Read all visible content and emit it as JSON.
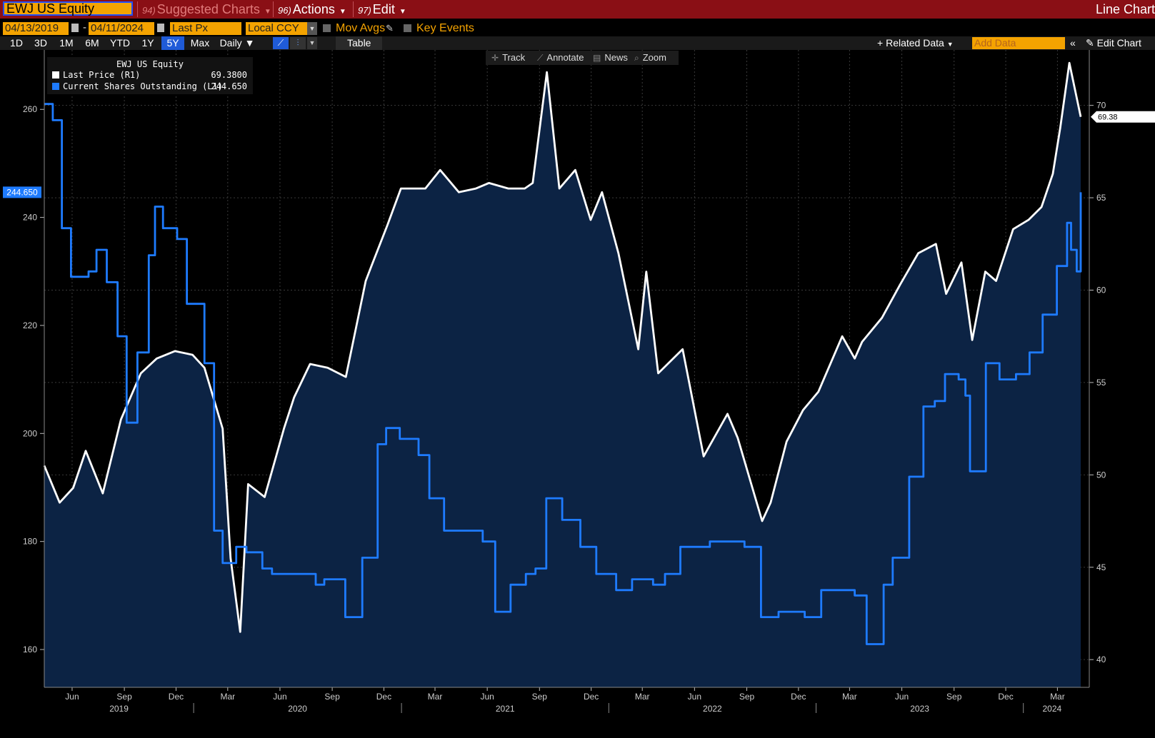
{
  "header": {
    "ticker": "EWJ US Equity",
    "menu": [
      {
        "num": "94)",
        "label": "Suggested Charts",
        "dim": true
      },
      {
        "num": "96)",
        "label": "Actions",
        "dim": false
      },
      {
        "num": "97)",
        "label": "Edit",
        "dim": false
      }
    ],
    "chart_type": "Line Chart"
  },
  "controls": {
    "start_date": "04/13/2019",
    "end_date": "04/11/2024",
    "field": "Last Px",
    "currency": "Local CCY",
    "mov_avgs": "Mov Avgs",
    "key_events": "Key Events",
    "periods": [
      "1D",
      "3D",
      "1M",
      "6M",
      "YTD",
      "1Y",
      "5Y",
      "Max"
    ],
    "selected_period": "5Y",
    "frequency": "Daily",
    "table_label": "Table",
    "related_data": "Related Data",
    "add_data_placeholder": "Add Data",
    "edit_chart": "Edit Chart"
  },
  "tools": [
    "Track",
    "Annotate",
    "News",
    "Zoom"
  ],
  "legend": {
    "title": "EWJ US Equity",
    "items": [
      {
        "label": "Last Price  (R1)",
        "value": "69.3800",
        "color": "#ffffff"
      },
      {
        "label": "Current Shares Outstanding  (L1)",
        "value": "244.650",
        "color": "#1e7bff"
      }
    ]
  },
  "colors": {
    "price_line": "#ffffff",
    "shares_line": "#1e7bff",
    "area_fill": "#0c2344",
    "grid": "#3a3a3a"
  },
  "chart_data": {
    "type": "line",
    "x_start": "2019-04-13",
    "x_end": "2024-04-11",
    "month_ticks": [
      "Jun",
      "Sep",
      "Dec",
      "Mar",
      "Jun",
      "Sep",
      "Dec",
      "Mar",
      "Jun",
      "Sep",
      "Dec",
      "Mar",
      "Jun",
      "Sep",
      "Dec",
      "Mar",
      "Jun",
      "Sep",
      "Dec",
      "Mar"
    ],
    "year_labels": [
      "2019",
      "2020",
      "2021",
      "2022",
      "2023",
      "2024"
    ],
    "left_axis": {
      "ticks": [
        160,
        180,
        200,
        220,
        240,
        260
      ],
      "range": [
        153,
        271
      ]
    },
    "right_axis": {
      "ticks": [
        40,
        45,
        50,
        55,
        60,
        65,
        70
      ],
      "range": [
        38.5,
        73
      ]
    },
    "current_labels": {
      "left": "244.650",
      "right": "69.38"
    },
    "series": [
      {
        "name": "Last Price (R1)",
        "axis": "right",
        "x": [
          "2019-04-13",
          "2019-05-10",
          "2019-06-03",
          "2019-06-25",
          "2019-07-25",
          "2019-08-26",
          "2019-09-30",
          "2019-10-28",
          "2019-11-29",
          "2019-12-30",
          "2020-01-20",
          "2020-02-21",
          "2020-03-06",
          "2020-03-23",
          "2020-04-06",
          "2020-05-05",
          "2020-06-08",
          "2020-06-26",
          "2020-07-24",
          "2020-08-24",
          "2020-09-25",
          "2020-10-30",
          "2020-11-09",
          "2020-12-07",
          "2020-12-31",
          "2021-02-12",
          "2021-03-10",
          "2021-04-12",
          "2021-05-12",
          "2021-06-04",
          "2021-07-08",
          "2021-08-06",
          "2021-08-20",
          "2021-09-14",
          "2021-10-06",
          "2021-11-03",
          "2021-11-30",
          "2021-12-20",
          "2022-01-18",
          "2022-02-22",
          "2022-03-08",
          "2022-03-29",
          "2022-05-11",
          "2022-06-17",
          "2022-07-29",
          "2022-08-16",
          "2022-09-28",
          "2022-10-13",
          "2022-11-10",
          "2022-12-09",
          "2023-01-05",
          "2023-02-16",
          "2023-03-10",
          "2023-03-23",
          "2023-04-27",
          "2023-05-29",
          "2023-06-30",
          "2023-07-31",
          "2023-08-18",
          "2023-09-14",
          "2023-10-03",
          "2023-10-26",
          "2023-11-14",
          "2023-12-14",
          "2024-01-10",
          "2024-02-02",
          "2024-02-22",
          "2024-03-06",
          "2024-03-22",
          "2024-04-11"
        ],
        "values": [
          50.5,
          48.5,
          49.3,
          51.3,
          49.0,
          53.0,
          55.5,
          56.3,
          56.7,
          56.5,
          55.8,
          52.5,
          45.5,
          41.5,
          49.5,
          48.8,
          52.5,
          54.2,
          56.0,
          55.8,
          55.3,
          60.5,
          61.3,
          63.5,
          65.5,
          65.5,
          66.5,
          65.3,
          65.5,
          65.8,
          65.5,
          65.5,
          65.8,
          71.8,
          65.5,
          66.5,
          63.8,
          65.3,
          62.0,
          56.8,
          61.0,
          55.5,
          56.8,
          51.0,
          53.3,
          52.0,
          47.5,
          48.5,
          51.8,
          53.5,
          54.5,
          57.5,
          56.3,
          57.2,
          58.5,
          60.3,
          62.0,
          62.5,
          59.8,
          61.5,
          57.3,
          61.0,
          60.5,
          63.3,
          63.8,
          64.5,
          66.3,
          68.8,
          72.3,
          69.38
        ]
      },
      {
        "name": "Current Shares Outstanding (L1)",
        "axis": "left",
        "x": [
          "2019-04-13",
          "2019-04-28",
          "2019-05-14",
          "2019-05-30",
          "2019-06-30",
          "2019-07-14",
          "2019-08-01",
          "2019-08-20",
          "2019-09-05",
          "2019-09-24",
          "2019-10-14",
          "2019-10-25",
          "2019-11-08",
          "2019-12-03",
          "2019-12-20",
          "2020-01-20",
          "2020-02-06",
          "2020-02-21",
          "2020-03-16",
          "2020-04-03",
          "2020-05-01",
          "2020-05-18",
          "2020-07-13",
          "2020-08-03",
          "2020-08-18",
          "2020-09-24",
          "2020-10-24",
          "2020-11-20",
          "2020-12-05",
          "2020-12-29",
          "2021-01-31",
          "2021-02-19",
          "2021-03-17",
          "2021-04-14",
          "2021-05-24",
          "2021-06-15",
          "2021-07-12",
          "2021-08-08",
          "2021-08-25",
          "2021-09-13",
          "2021-10-11",
          "2021-11-12",
          "2021-12-10",
          "2022-01-14",
          "2022-02-11",
          "2022-03-20",
          "2022-04-10",
          "2022-05-07",
          "2022-06-01",
          "2022-06-28",
          "2022-07-28",
          "2022-08-28",
          "2022-09-26",
          "2022-10-27",
          "2022-11-20",
          "2022-12-12",
          "2023-01-10",
          "2023-02-18",
          "2023-03-10",
          "2023-03-31",
          "2023-04-30",
          "2023-05-16",
          "2023-06-14",
          "2023-07-09",
          "2023-07-29",
          "2023-08-16",
          "2023-09-09",
          "2023-09-21",
          "2023-09-29",
          "2023-10-27",
          "2023-11-20",
          "2023-12-19",
          "2024-01-12",
          "2024-02-04",
          "2024-02-29",
          "2024-03-18",
          "2024-03-25",
          "2024-04-04",
          "2024-04-11"
        ],
        "values": [
          261,
          258,
          238,
          229,
          230,
          234,
          228,
          218,
          202,
          215,
          233,
          242,
          238,
          236,
          224,
          213,
          182,
          176,
          179,
          178,
          175,
          174,
          174,
          172,
          173,
          166,
          177,
          198,
          201,
          199,
          196,
          188,
          182,
          182,
          180,
          167,
          172,
          174,
          175,
          188,
          184,
          179,
          174,
          171,
          173,
          172,
          174,
          179,
          179,
          180,
          180,
          179,
          166,
          167,
          167,
          166,
          171,
          171,
          170,
          161,
          172,
          177,
          192,
          205,
          206,
          211,
          210,
          207,
          193,
          213,
          210,
          211,
          215,
          222,
          231,
          239,
          234,
          230,
          244.65
        ]
      }
    ]
  }
}
